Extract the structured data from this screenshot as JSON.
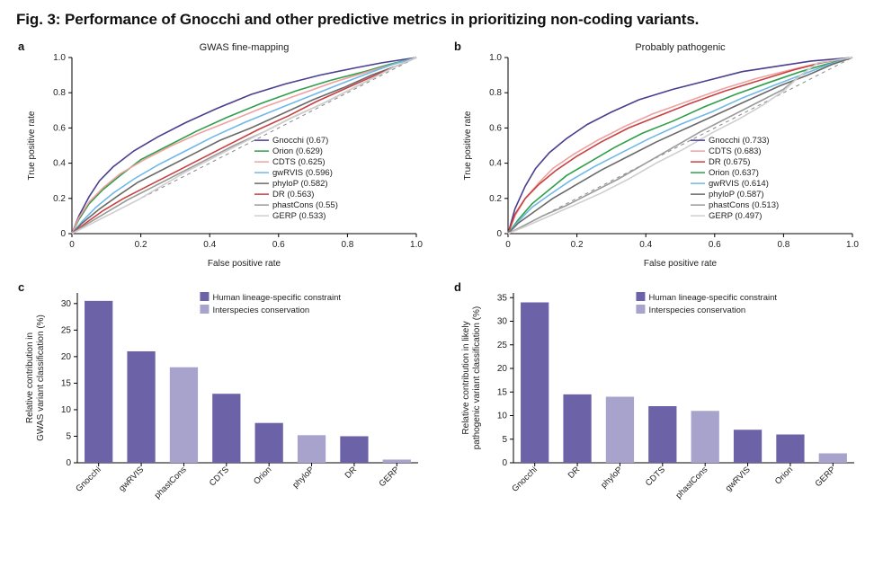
{
  "figure_title": "Fig. 3: Performance of Gnocchi and other predictive metrics in prioritizing non-coding variants.",
  "colors": {
    "Gnocchi": "#4a3e8e",
    "Orion": "#2e9f4a",
    "CDTS": "#f0a0a0",
    "gwRVIS": "#6fb8e8",
    "phyloP": "#6a6a6a",
    "DR": "#c94040",
    "phastCons": "#9a9a9a",
    "GERP": "#cfcfcf",
    "bar_hls": "#6b62a8",
    "bar_inter": "#a7a3cd",
    "axis": "#000000",
    "diag": "#888888"
  },
  "panel_a": {
    "letter": "a",
    "title": "GWAS fine-mapping",
    "xlabel": "False positive rate",
    "ylabel": "True positive rate",
    "xlim": [
      0,
      1
    ],
    "ylim": [
      0,
      1
    ],
    "ticks": [
      0,
      0.2,
      0.4,
      0.6,
      0.8,
      1.0
    ],
    "legend_order": [
      "Gnocchi",
      "Orion",
      "CDTS",
      "gwRVIS",
      "phyloP",
      "DR",
      "phastCons",
      "GERP"
    ],
    "auc": {
      "Gnocchi": 0.67,
      "Orion": 0.629,
      "CDTS": 0.625,
      "gwRVIS": 0.596,
      "phyloP": 0.582,
      "DR": 0.563,
      "phastCons": 0.55,
      "GERP": 0.533
    },
    "series": {
      "Gnocchi": [
        [
          0,
          0
        ],
        [
          0.02,
          0.1
        ],
        [
          0.05,
          0.21
        ],
        [
          0.08,
          0.3
        ],
        [
          0.12,
          0.38
        ],
        [
          0.18,
          0.47
        ],
        [
          0.25,
          0.55
        ],
        [
          0.33,
          0.63
        ],
        [
          0.42,
          0.71
        ],
        [
          0.52,
          0.79
        ],
        [
          0.62,
          0.85
        ],
        [
          0.72,
          0.9
        ],
        [
          0.82,
          0.94
        ],
        [
          0.9,
          0.97
        ],
        [
          1,
          1
        ]
      ],
      "Orion": [
        [
          0,
          0
        ],
        [
          0.02,
          0.08
        ],
        [
          0.05,
          0.17
        ],
        [
          0.09,
          0.25
        ],
        [
          0.14,
          0.33
        ],
        [
          0.2,
          0.42
        ],
        [
          0.28,
          0.5
        ],
        [
          0.36,
          0.58
        ],
        [
          0.45,
          0.66
        ],
        [
          0.55,
          0.74
        ],
        [
          0.65,
          0.81
        ],
        [
          0.75,
          0.87
        ],
        [
          0.85,
          0.92
        ],
        [
          0.92,
          0.96
        ],
        [
          1,
          1
        ]
      ],
      "CDTS": [
        [
          0,
          0
        ],
        [
          0.02,
          0.09
        ],
        [
          0.05,
          0.18
        ],
        [
          0.09,
          0.26
        ],
        [
          0.14,
          0.34
        ],
        [
          0.21,
          0.42
        ],
        [
          0.29,
          0.5
        ],
        [
          0.37,
          0.57
        ],
        [
          0.46,
          0.64
        ],
        [
          0.56,
          0.72
        ],
        [
          0.66,
          0.79
        ],
        [
          0.76,
          0.86
        ],
        [
          0.86,
          0.92
        ],
        [
          0.93,
          0.96
        ],
        [
          1,
          1
        ]
      ],
      "gwRVIS": [
        [
          0,
          0
        ],
        [
          0.03,
          0.07
        ],
        [
          0.07,
          0.15
        ],
        [
          0.12,
          0.23
        ],
        [
          0.18,
          0.31
        ],
        [
          0.25,
          0.39
        ],
        [
          0.33,
          0.47
        ],
        [
          0.41,
          0.55
        ],
        [
          0.5,
          0.63
        ],
        [
          0.6,
          0.71
        ],
        [
          0.69,
          0.78
        ],
        [
          0.78,
          0.85
        ],
        [
          0.86,
          0.91
        ],
        [
          0.93,
          0.96
        ],
        [
          1,
          1
        ]
      ],
      "phyloP": [
        [
          0,
          0
        ],
        [
          0.03,
          0.06
        ],
        [
          0.08,
          0.14
        ],
        [
          0.13,
          0.21
        ],
        [
          0.19,
          0.29
        ],
        [
          0.27,
          0.37
        ],
        [
          0.35,
          0.45
        ],
        [
          0.43,
          0.53
        ],
        [
          0.52,
          0.6
        ],
        [
          0.61,
          0.68
        ],
        [
          0.7,
          0.76
        ],
        [
          0.79,
          0.83
        ],
        [
          0.87,
          0.9
        ],
        [
          0.94,
          0.95
        ],
        [
          1,
          1
        ]
      ],
      "DR": [
        [
          0,
          0
        ],
        [
          0.04,
          0.06
        ],
        [
          0.09,
          0.13
        ],
        [
          0.15,
          0.2
        ],
        [
          0.22,
          0.27
        ],
        [
          0.3,
          0.35
        ],
        [
          0.38,
          0.43
        ],
        [
          0.46,
          0.51
        ],
        [
          0.54,
          0.59
        ],
        [
          0.63,
          0.67
        ],
        [
          0.71,
          0.75
        ],
        [
          0.79,
          0.82
        ],
        [
          0.87,
          0.89
        ],
        [
          0.94,
          0.95
        ],
        [
          1,
          1
        ]
      ],
      "phastCons": [
        [
          0,
          0
        ],
        [
          0.04,
          0.05
        ],
        [
          0.1,
          0.12
        ],
        [
          0.16,
          0.19
        ],
        [
          0.23,
          0.26
        ],
        [
          0.31,
          0.34
        ],
        [
          0.39,
          0.42
        ],
        [
          0.47,
          0.5
        ],
        [
          0.56,
          0.58
        ],
        [
          0.64,
          0.66
        ],
        [
          0.73,
          0.74
        ],
        [
          0.81,
          0.82
        ],
        [
          0.88,
          0.89
        ],
        [
          0.94,
          0.95
        ],
        [
          1,
          1
        ]
      ],
      "GERP": [
        [
          0,
          0
        ],
        [
          0.05,
          0.05
        ],
        [
          0.12,
          0.12
        ],
        [
          0.19,
          0.19
        ],
        [
          0.26,
          0.27
        ],
        [
          0.33,
          0.35
        ],
        [
          0.41,
          0.43
        ],
        [
          0.49,
          0.51
        ],
        [
          0.57,
          0.59
        ],
        [
          0.65,
          0.67
        ],
        [
          0.73,
          0.74
        ],
        [
          0.81,
          0.82
        ],
        [
          0.88,
          0.89
        ],
        [
          0.94,
          0.95
        ],
        [
          1,
          1
        ]
      ]
    }
  },
  "panel_b": {
    "letter": "b",
    "title": "Probably pathogenic",
    "xlabel": "False positive rate",
    "ylabel": "True positive rate",
    "xlim": [
      0,
      1
    ],
    "ylim": [
      0,
      1
    ],
    "ticks": [
      0,
      0.2,
      0.4,
      0.6,
      0.8,
      1.0
    ],
    "legend_order": [
      "Gnocchi",
      "CDTS",
      "DR",
      "Orion",
      "gwRVIS",
      "phyloP",
      "phastCons",
      "GERP"
    ],
    "auc": {
      "Gnocchi": 0.733,
      "CDTS": 0.683,
      "DR": 0.675,
      "Orion": 0.637,
      "gwRVIS": 0.614,
      "phyloP": 0.587,
      "phastCons": 0.513,
      "GERP": 0.497
    },
    "series": {
      "Gnocchi": [
        [
          0,
          0
        ],
        [
          0.02,
          0.14
        ],
        [
          0.05,
          0.27
        ],
        [
          0.08,
          0.37
        ],
        [
          0.12,
          0.46
        ],
        [
          0.17,
          0.54
        ],
        [
          0.23,
          0.62
        ],
        [
          0.3,
          0.69
        ],
        [
          0.38,
          0.76
        ],
        [
          0.48,
          0.82
        ],
        [
          0.58,
          0.87
        ],
        [
          0.68,
          0.92
        ],
        [
          0.78,
          0.95
        ],
        [
          0.88,
          0.98
        ],
        [
          1,
          1
        ]
      ],
      "CDTS": [
        [
          0,
          0
        ],
        [
          0.02,
          0.1
        ],
        [
          0.05,
          0.2
        ],
        [
          0.09,
          0.29
        ],
        [
          0.13,
          0.37
        ],
        [
          0.19,
          0.45
        ],
        [
          0.26,
          0.53
        ],
        [
          0.34,
          0.61
        ],
        [
          0.42,
          0.68
        ],
        [
          0.52,
          0.75
        ],
        [
          0.62,
          0.82
        ],
        [
          0.72,
          0.88
        ],
        [
          0.82,
          0.93
        ],
        [
          0.91,
          0.97
        ],
        [
          1,
          1
        ]
      ],
      "DR": [
        [
          0,
          0
        ],
        [
          0.02,
          0.11
        ],
        [
          0.05,
          0.2
        ],
        [
          0.09,
          0.28
        ],
        [
          0.14,
          0.36
        ],
        [
          0.2,
          0.44
        ],
        [
          0.27,
          0.52
        ],
        [
          0.35,
          0.6
        ],
        [
          0.44,
          0.67
        ],
        [
          0.53,
          0.74
        ],
        [
          0.63,
          0.81
        ],
        [
          0.73,
          0.87
        ],
        [
          0.83,
          0.93
        ],
        [
          0.91,
          0.97
        ],
        [
          1,
          1
        ]
      ],
      "Orion": [
        [
          0,
          0
        ],
        [
          0.03,
          0.08
        ],
        [
          0.07,
          0.17
        ],
        [
          0.12,
          0.25
        ],
        [
          0.17,
          0.33
        ],
        [
          0.24,
          0.41
        ],
        [
          0.31,
          0.49
        ],
        [
          0.39,
          0.57
        ],
        [
          0.48,
          0.64
        ],
        [
          0.57,
          0.72
        ],
        [
          0.66,
          0.79
        ],
        [
          0.76,
          0.86
        ],
        [
          0.85,
          0.92
        ],
        [
          0.92,
          0.96
        ],
        [
          1,
          1
        ]
      ],
      "gwRVIS": [
        [
          0,
          0
        ],
        [
          0.03,
          0.07
        ],
        [
          0.07,
          0.15
        ],
        [
          0.12,
          0.22
        ],
        [
          0.18,
          0.3
        ],
        [
          0.25,
          0.38
        ],
        [
          0.33,
          0.46
        ],
        [
          0.41,
          0.54
        ],
        [
          0.5,
          0.62
        ],
        [
          0.59,
          0.69
        ],
        [
          0.68,
          0.77
        ],
        [
          0.77,
          0.84
        ],
        [
          0.85,
          0.9
        ],
        [
          0.93,
          0.96
        ],
        [
          1,
          1
        ]
      ],
      "phyloP": [
        [
          0,
          0
        ],
        [
          0.03,
          0.06
        ],
        [
          0.08,
          0.13
        ],
        [
          0.13,
          0.2
        ],
        [
          0.2,
          0.28
        ],
        [
          0.27,
          0.36
        ],
        [
          0.35,
          0.44
        ],
        [
          0.43,
          0.52
        ],
        [
          0.52,
          0.6
        ],
        [
          0.61,
          0.68
        ],
        [
          0.7,
          0.76
        ],
        [
          0.79,
          0.84
        ],
        [
          0.87,
          0.9
        ],
        [
          0.94,
          0.96
        ],
        [
          1,
          1
        ]
      ],
      "phastCons": [
        [
          0,
          0
        ],
        [
          0.04,
          0.04
        ],
        [
          0.1,
          0.1
        ],
        [
          0.17,
          0.16
        ],
        [
          0.24,
          0.23
        ],
        [
          0.32,
          0.31
        ],
        [
          0.4,
          0.4
        ],
        [
          0.48,
          0.49
        ],
        [
          0.56,
          0.58
        ],
        [
          0.64,
          0.66
        ],
        [
          0.73,
          0.75
        ],
        [
          0.8,
          0.82
        ],
        [
          0.85,
          0.9
        ],
        [
          0.9,
          0.97
        ],
        [
          1,
          1
        ]
      ],
      "GERP": [
        [
          0,
          0
        ],
        [
          0.05,
          0.04
        ],
        [
          0.12,
          0.1
        ],
        [
          0.19,
          0.16
        ],
        [
          0.27,
          0.23
        ],
        [
          0.35,
          0.31
        ],
        [
          0.43,
          0.4
        ],
        [
          0.51,
          0.48
        ],
        [
          0.59,
          0.57
        ],
        [
          0.67,
          0.65
        ],
        [
          0.74,
          0.73
        ],
        [
          0.8,
          0.81
        ],
        [
          0.85,
          0.9
        ],
        [
          0.9,
          0.97
        ],
        [
          1,
          1
        ]
      ]
    }
  },
  "panel_c": {
    "letter": "c",
    "ylabel_line1": "Relative contribution in",
    "ylabel_line2": "GWAS variant classification (%)",
    "ylim": [
      0,
      32
    ],
    "ytick_step": 5,
    "legend": {
      "hls": "Human lineage-specific constraint",
      "inter": "Interspecies conservation"
    },
    "bars": [
      {
        "label": "Gnocchi",
        "value": 30.5,
        "type": "hls"
      },
      {
        "label": "gwRVIS",
        "value": 21,
        "type": "hls"
      },
      {
        "label": "phastCons",
        "value": 18,
        "type": "inter"
      },
      {
        "label": "CDTS",
        "value": 13,
        "type": "hls"
      },
      {
        "label": "Orion",
        "value": 7.5,
        "type": "hls"
      },
      {
        "label": "phyloP",
        "value": 5.2,
        "type": "inter"
      },
      {
        "label": "DR",
        "value": 5,
        "type": "hls"
      },
      {
        "label": "GERP",
        "value": 0.6,
        "type": "inter"
      }
    ]
  },
  "panel_d": {
    "letter": "d",
    "ylabel_line1": "Relative contribution in likely",
    "ylabel_line2": "pathogenic variant classification (%)",
    "ylim": [
      0,
      36
    ],
    "ytick_step": 5,
    "legend": {
      "hls": "Human lineage-specific constraint",
      "inter": "Interspecies conservation"
    },
    "bars": [
      {
        "label": "Gnocchi",
        "value": 34,
        "type": "hls"
      },
      {
        "label": "DR",
        "value": 14.5,
        "type": "hls"
      },
      {
        "label": "phyloP",
        "value": 14,
        "type": "inter"
      },
      {
        "label": "CDTS",
        "value": 12,
        "type": "hls"
      },
      {
        "label": "phastCons",
        "value": 11,
        "type": "inter"
      },
      {
        "label": "gwRVIS",
        "value": 7,
        "type": "hls"
      },
      {
        "label": "Orion",
        "value": 6,
        "type": "hls"
      },
      {
        "label": "GERP",
        "value": 2,
        "type": "inter"
      }
    ]
  }
}
